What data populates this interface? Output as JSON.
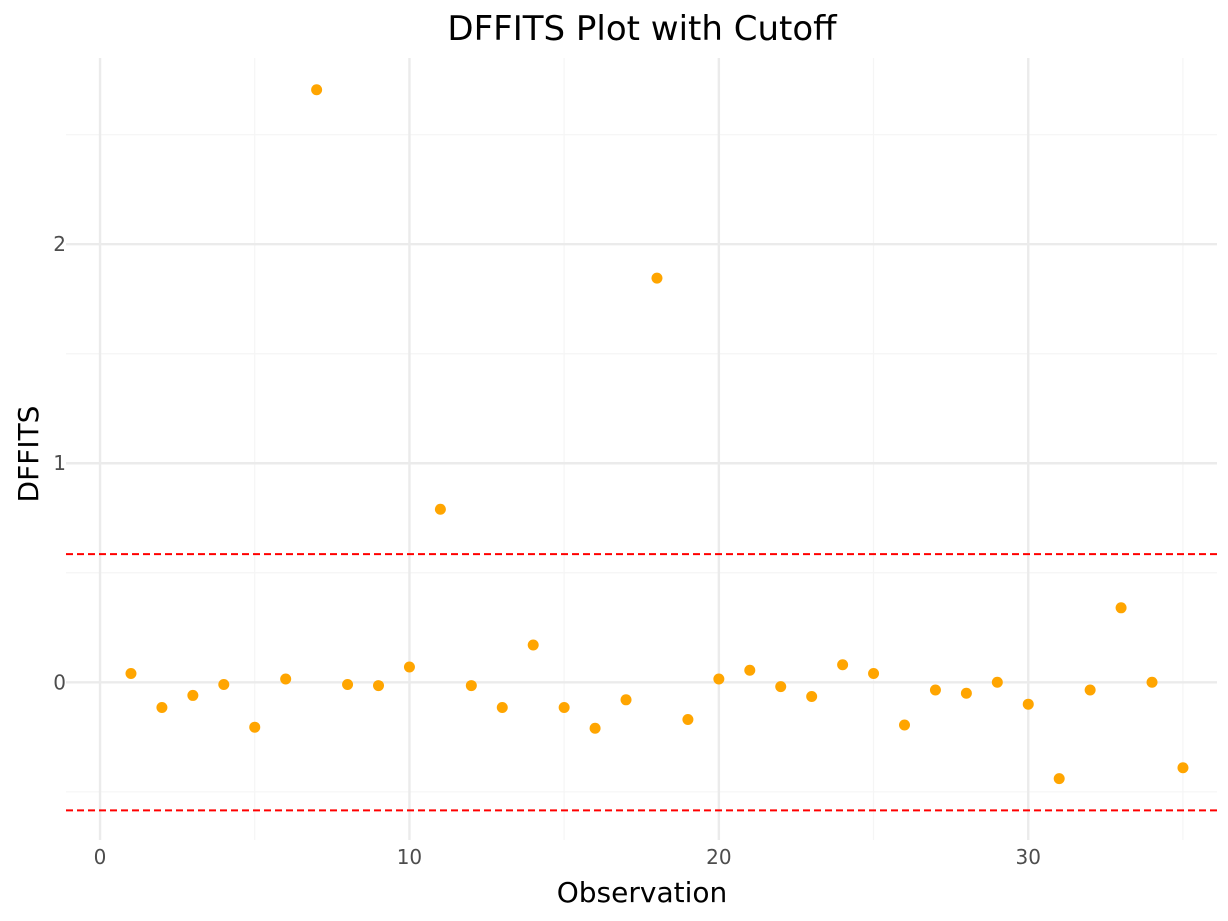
{
  "chart_data": {
    "type": "scatter",
    "title": "DFFITS Plot with Cutoff",
    "xlabel": "Observation",
    "ylabel": "DFFITS",
    "xlim": [
      -1.1,
      36.1
    ],
    "ylim": [
      -0.72,
      2.85
    ],
    "x_ticks": [
      0,
      10,
      20,
      30
    ],
    "x_tick_labels": [
      "0",
      "10",
      "20",
      "30"
    ],
    "y_ticks": [
      0,
      1,
      2
    ],
    "y_tick_labels": [
      "0",
      "1",
      "2"
    ],
    "grid": true,
    "cutoff_lines": [
      0.585,
      -0.585
    ],
    "colors": {
      "points": "#FFA500",
      "cutoff": "#FF0000",
      "grid_major": "#EBEBEB",
      "grid_minor": "#F5F5F5"
    },
    "series": [
      {
        "x": [
          1,
          2,
          3,
          4,
          5,
          6,
          7,
          8,
          9,
          10,
          11,
          12,
          13,
          14,
          15,
          16,
          17,
          18,
          19,
          20,
          21,
          22,
          23,
          24,
          25,
          26,
          27,
          28,
          29,
          30,
          31,
          32,
          33,
          34,
          35
        ],
        "values": [
          0.04,
          -0.115,
          -0.06,
          -0.01,
          -0.205,
          0.015,
          2.705,
          -0.01,
          -0.015,
          0.07,
          0.79,
          -0.015,
          -0.115,
          0.17,
          -0.115,
          -0.21,
          -0.08,
          1.845,
          -0.17,
          0.015,
          0.055,
          -0.02,
          -0.065,
          0.08,
          0.04,
          -0.195,
          -0.035,
          -0.05,
          0.0,
          -0.1,
          -0.44,
          -0.035,
          0.34,
          0.0,
          -0.39
        ]
      }
    ]
  }
}
